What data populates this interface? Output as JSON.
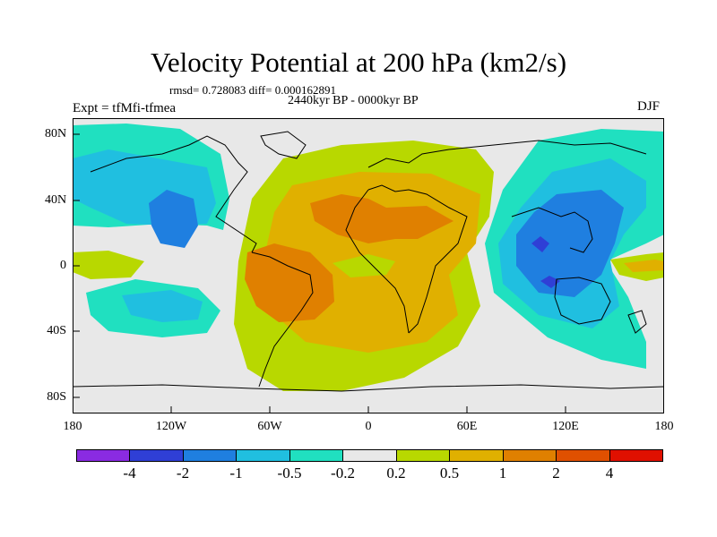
{
  "title": "Velocity Potential at 200 hPa (km2/s)",
  "stats": "rmsd= 0.728083 diff= 0.000162891",
  "experiment": "Expt = tfMfi-tfmea",
  "period": "2440kyr BP - 0000kyr BP",
  "season": "DJF",
  "x_ticks": [
    "180",
    "120W",
    "60W",
    "0",
    "60E",
    "120E",
    "180"
  ],
  "y_ticks": [
    "80N",
    "40N",
    "0",
    "40S",
    "80S"
  ],
  "colorbar": {
    "colors": [
      "#8a2be2",
      "#2f3fd6",
      "#1f7fe0",
      "#20bfe0",
      "#20e0c0",
      "#e8e8e8",
      "#b8d800",
      "#e0b000",
      "#e08000",
      "#e05000",
      "#e01000"
    ],
    "labels": [
      "-4",
      "-2",
      "-1",
      "-0.5",
      "-0.2",
      "0.2",
      "0.5",
      "1",
      "2",
      "4"
    ]
  },
  "field_colors": {
    "background": "#e8e8e8",
    "neg_02": "#20e0c0",
    "neg_05": "#20bfe0",
    "neg_1": "#1f7fe0",
    "neg_2": "#2f3fd6",
    "pos_02": "#b8d800",
    "pos_05": "#e0b000",
    "pos_1": "#e08000"
  }
}
